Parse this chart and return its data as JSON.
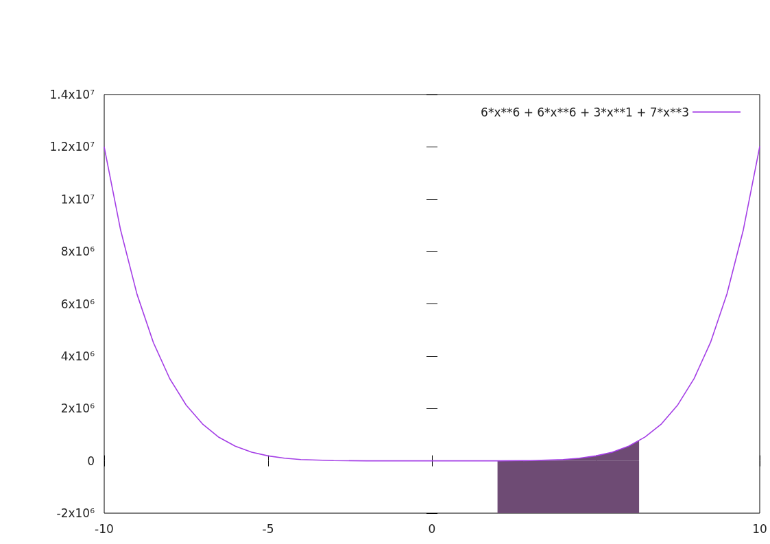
{
  "chart_data": {
    "type": "line",
    "xlim": [
      -10,
      10
    ],
    "xticks": [
      -10,
      -5,
      0,
      {
        "value": 5,
        "label": null
      },
      10
    ],
    "ylim": [
      -2000000,
      14000000
    ],
    "yticks": [
      {
        "value": -2000000,
        "label": "-2x10⁶"
      },
      {
        "value": 0,
        "label": "0"
      },
      {
        "value": 2000000,
        "label": "2x10⁶"
      },
      {
        "value": 4000000,
        "label": "4x10⁶"
      },
      {
        "value": 6000000,
        "label": "6x10⁶"
      },
      {
        "value": 8000000,
        "label": "8x10⁶"
      },
      {
        "value": 10000000,
        "label": "1x10⁷"
      },
      {
        "value": 12000000,
        "label": "1.2x10⁷"
      },
      {
        "value": 14000000,
        "label": "1.4x10⁷"
      }
    ],
    "legend": "top right",
    "grid": false,
    "marker": "none",
    "line_style": "solid",
    "series": [
      {
        "name": "6*x**6 + 6*x**6 + 3*x**1 + 7*x**3",
        "color": "#a43ee6",
        "x": [
          -10,
          -9.5,
          -9,
          -8.5,
          -8,
          -7.5,
          -7,
          -6.5,
          -6,
          -5.5,
          -5,
          -4.5,
          -4,
          -3,
          -2,
          -1,
          0,
          1,
          2,
          3,
          4,
          4.5,
          5,
          5.5,
          6,
          6.5,
          7,
          7.5,
          8,
          8.5,
          9,
          9.5,
          10
        ],
        "values": [
          11990000,
          8820000,
          6370000,
          4520000,
          3140000,
          2130000,
          1410000,
          900000,
          560000,
          330000,
          190000,
          100000,
          50000,
          10000,
          0,
          0,
          0,
          0,
          0,
          10000,
          50000,
          100000,
          190000,
          330000,
          560000,
          910000,
          1410000,
          2140000,
          3150000,
          4530000,
          6380000,
          8830000,
          12010000
        ]
      },
      {
        "type": "area",
        "color": "#6e4b74",
        "x": [
          2,
          2.5,
          3,
          3.5,
          4,
          4.5,
          5,
          5.5,
          6,
          6.32
        ],
        "values": [
          0,
          0,
          10000,
          20000,
          50000,
          100000,
          190000,
          330000,
          560000,
          770000
        ]
      },
      {
        "type": "area",
        "color": "#6e4b74",
        "x": [
          2,
          6.32
        ],
        "values": [
          -2000000,
          -2000000
        ]
      }
    ]
  }
}
